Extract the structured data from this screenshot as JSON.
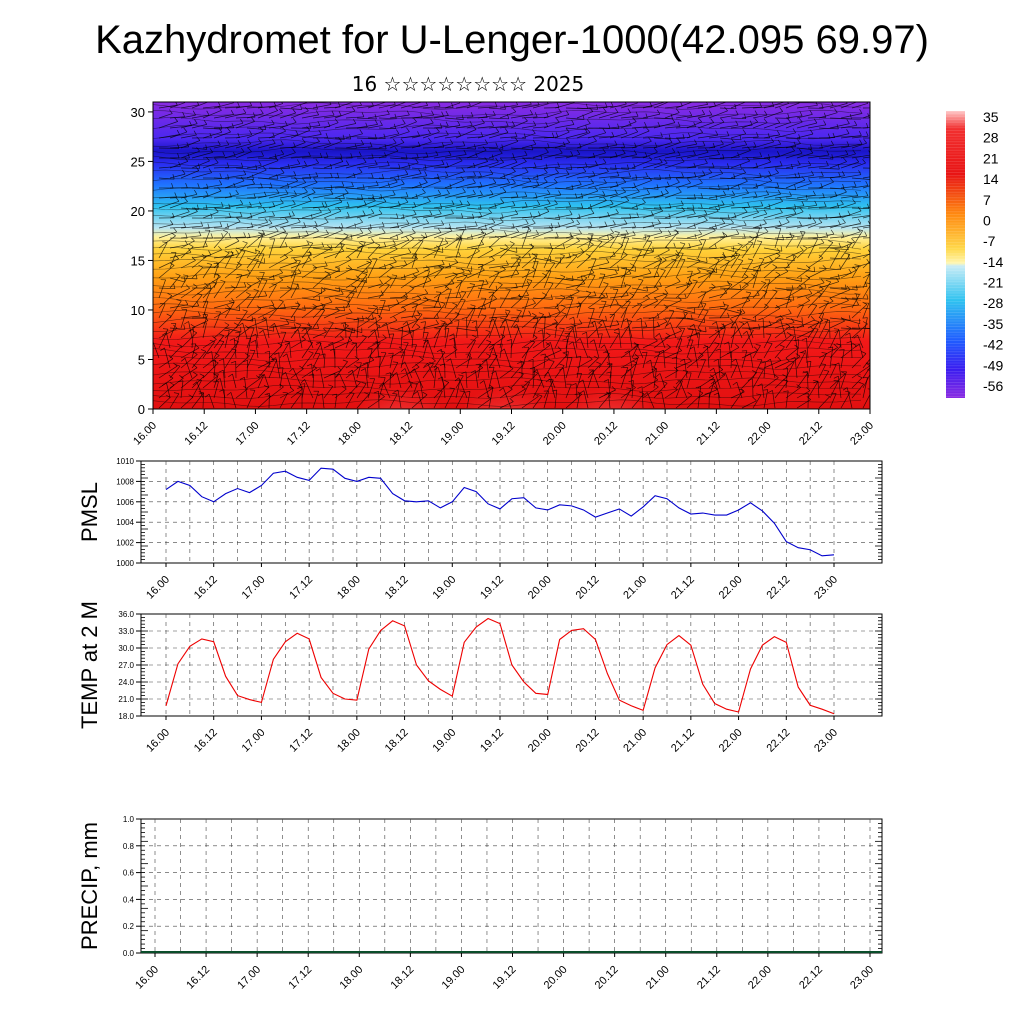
{
  "title": "Kazhydromet for U-Lenger-1000(42.095 69.97)",
  "subtitle": "16 ☆☆☆☆☆☆☆☆ 2025",
  "chart_data": [
    {
      "type": "heatmap",
      "panel": "cross-section",
      "xlabel": "",
      "ylabel": "",
      "x_ticks": [
        "16.00",
        "16.12",
        "17.00",
        "17.12",
        "18.00",
        "18.12",
        "19.00",
        "19.12",
        "20.00",
        "20.12",
        "21.00",
        "21.12",
        "22.00",
        "22.12",
        "23.00"
      ],
      "y_ticks": [
        0,
        5,
        10,
        15,
        20,
        25,
        30
      ],
      "ylim": [
        0,
        31
      ],
      "colorbar_labels": [
        "35",
        "28",
        "21",
        "14",
        "7",
        "0",
        "-7",
        "-14",
        "-21",
        "-28",
        "-35",
        "-42",
        "-49",
        "-56"
      ],
      "colorbar_range": [
        -60,
        38
      ],
      "colormap": [
        "#8a2be2",
        "#3a1df0",
        "#1f74ff",
        "#2fc2f0",
        "#b8e4f2",
        "#fff19a",
        "#ffc21a",
        "#ff7c10",
        "#f21818",
        "#ff9b9b"
      ]
    },
    {
      "type": "line",
      "ylabel": "PMSL",
      "x_ticks": [
        "16.00",
        "16.12",
        "17.00",
        "17.12",
        "18.00",
        "18.12",
        "19.00",
        "19.12",
        "20.00",
        "20.12",
        "21.00",
        "21.12",
        "22.00",
        "22.12",
        "23.00"
      ],
      "y_ticks": [
        "1010",
        "1008",
        "1006",
        "1004",
        "1002",
        "1000"
      ],
      "ylim": [
        1000,
        1010
      ],
      "color": "#0000cc",
      "values": [
        1007.2,
        1008.0,
        1007.6,
        1006.5,
        1006.0,
        1006.8,
        1007.3,
        1006.9,
        1007.6,
        1008.8,
        1009.0,
        1008.4,
        1008.1,
        1009.3,
        1009.2,
        1008.3,
        1008.0,
        1008.4,
        1008.3,
        1006.8,
        1006.1,
        1006.0,
        1006.1,
        1005.4,
        1006.0,
        1007.4,
        1007.0,
        1005.8,
        1005.3,
        1006.3,
        1006.4,
        1005.4,
        1005.2,
        1005.7,
        1005.6,
        1005.2,
        1004.5,
        1004.9,
        1005.3,
        1004.6,
        1005.5,
        1006.6,
        1006.3,
        1005.4,
        1004.8,
        1004.9,
        1004.7,
        1004.7,
        1005.2,
        1005.9,
        1005.1,
        1003.9,
        1002.1,
        1001.5,
        1001.3,
        1000.7,
        1000.8
      ]
    },
    {
      "type": "line",
      "ylabel": "TEMP at 2 M",
      "x_ticks": [
        "16.00",
        "16.12",
        "17.00",
        "17.12",
        "18.00",
        "18.12",
        "19.00",
        "19.12",
        "20.00",
        "20.12",
        "21.00",
        "21.12",
        "22.00",
        "22.12",
        "23.00"
      ],
      "y_ticks": [
        "36.0",
        "33.0",
        "30.0",
        "27.0",
        "24.0",
        "21.0",
        "18.0"
      ],
      "ylim": [
        18,
        36
      ],
      "color": "#ee0000",
      "values": [
        19.8,
        27.2,
        30.3,
        31.6,
        31.1,
        25.0,
        21.6,
        20.9,
        20.4,
        28.0,
        31.1,
        32.6,
        31.6,
        24.8,
        22.0,
        21.0,
        20.8,
        29.8,
        33.1,
        34.8,
        33.9,
        27.0,
        24.2,
        22.7,
        21.5,
        31.0,
        33.7,
        35.2,
        34.3,
        27.0,
        24.0,
        22.0,
        21.8,
        31.5,
        33.1,
        33.4,
        31.5,
        25.5,
        20.8,
        19.8,
        19.0,
        26.5,
        30.6,
        32.2,
        30.5,
        23.6,
        20.2,
        19.2,
        18.7,
        26.3,
        30.5,
        32.0,
        31.0,
        23.1,
        19.9,
        19.2,
        18.4
      ]
    },
    {
      "type": "bar",
      "ylabel": "PRECIP, mm",
      "x_ticks": [
        "16.00",
        "16.12",
        "17.00",
        "17.12",
        "18.00",
        "18.12",
        "19.00",
        "19.12",
        "20.00",
        "20.12",
        "21.00",
        "21.12",
        "22.00",
        "22.12",
        "23.00"
      ],
      "y_ticks": [
        "1.0",
        "0.8",
        "0.6",
        "0.4",
        "0.2",
        "0.0"
      ],
      "ylim": [
        0,
        1
      ],
      "values": []
    }
  ]
}
